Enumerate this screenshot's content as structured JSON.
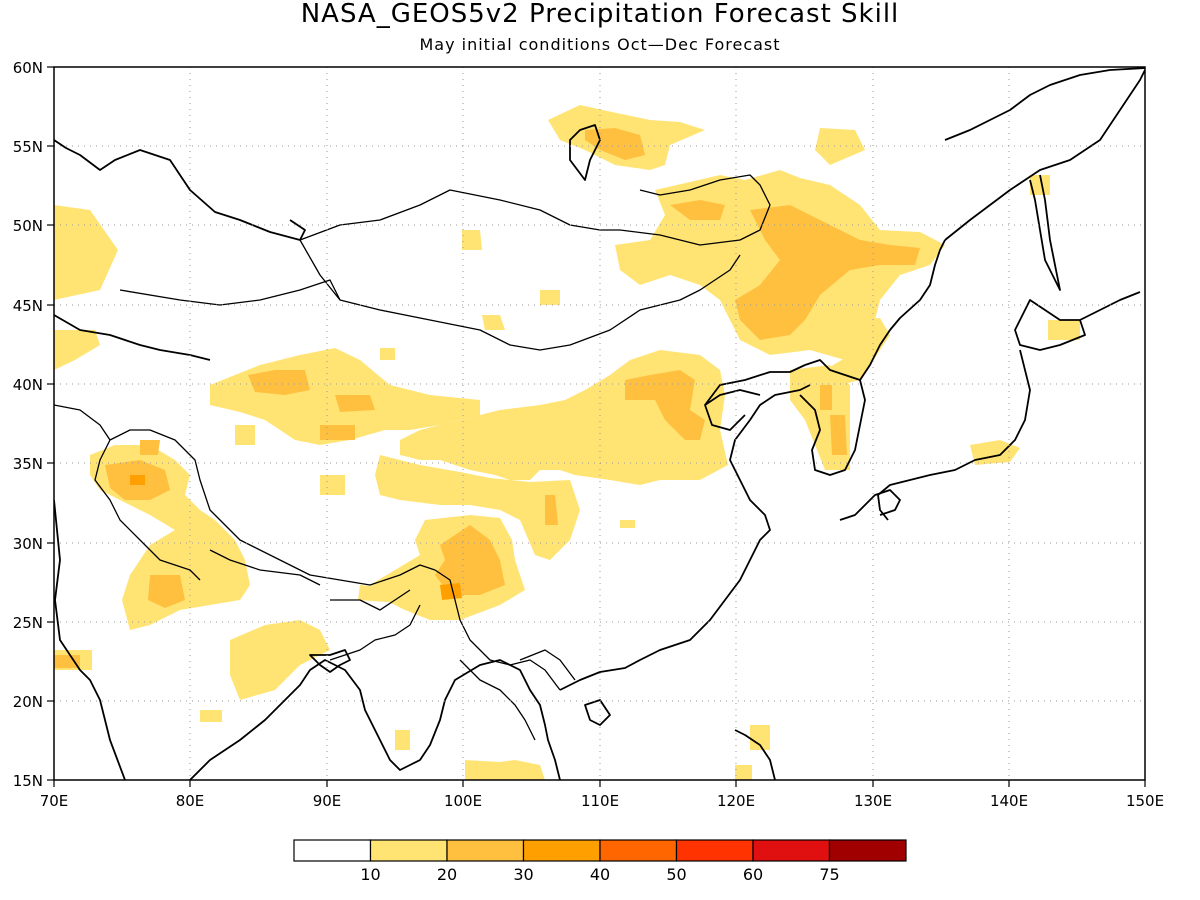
{
  "title": "NASA_GEOS5v2 Precipitation Forecast Skill",
  "subtitle": "May initial conditions  Oct—Dec Forecast",
  "map": {
    "lon_range": [
      70,
      150
    ],
    "lat_range": [
      15,
      60
    ],
    "lon_ticks": [
      "70E",
      "80E",
      "90E",
      "100E",
      "110E",
      "120E",
      "130E",
      "140E",
      "150E"
    ],
    "lat_ticks": [
      "15N",
      "20N",
      "25N",
      "30N",
      "35N",
      "40N",
      "45N",
      "50N",
      "55N",
      "60N"
    ],
    "grid": true
  },
  "colorbar": {
    "colors": [
      "#ffffff",
      "#ffe474",
      "#ffc040",
      "#ffa000",
      "#ff6600",
      "#ff3300",
      "#e01010",
      "#a00000"
    ],
    "labels": [
      "10",
      "20",
      "30",
      "40",
      "50",
      "60",
      "75"
    ]
  },
  "skill_levels": [
    "10-20",
    "20-30"
  ]
}
